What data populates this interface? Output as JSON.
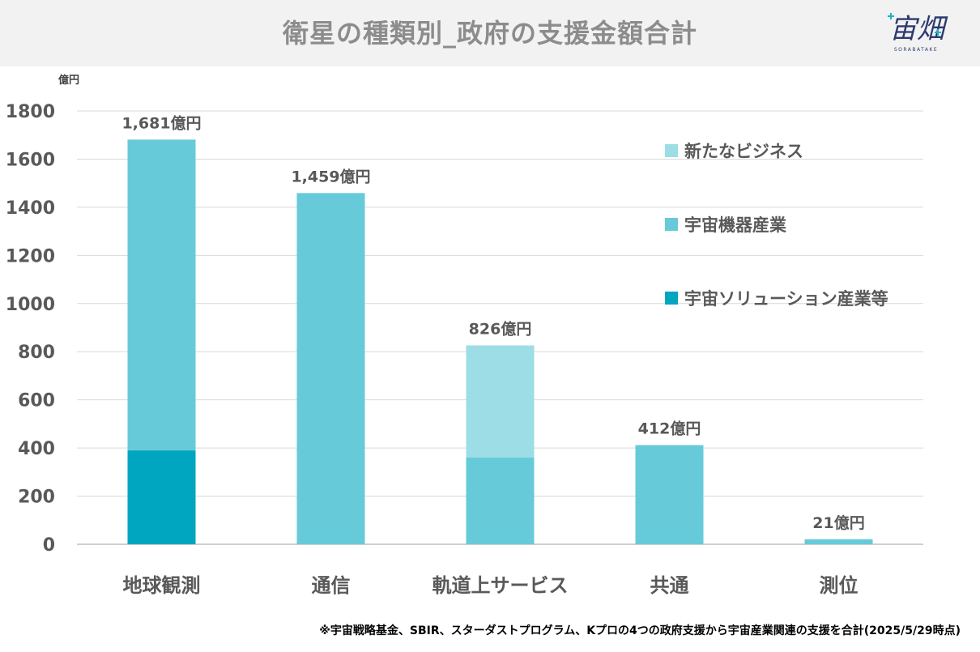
{
  "header": {
    "title": "衛星の種類別_政府の支援金額合計",
    "logo_text": "宙畑",
    "logo_subtext": "SORABATAKE"
  },
  "footnote": "※宇宙戦略基金、SBIR、スターダストプログラム、Kプロの4つの政府支援から宇宙産業関連の支援を合計(2025/5/29時点)",
  "chart_data": {
    "type": "bar",
    "stacked": true,
    "ylabel": "億円",
    "ylim": [
      0,
      1800
    ],
    "yticks": [
      0,
      200,
      400,
      600,
      800,
      1000,
      1200,
      1400,
      1600,
      1800
    ],
    "grid": true,
    "legend_position": "right",
    "categories": [
      "地球観測",
      "通信",
      "軌道上サービス",
      "共通",
      "測位"
    ],
    "series": [
      {
        "name": "宇宙ソリューション産業等",
        "color": "#00a6bf",
        "values": [
          390,
          0,
          0,
          0,
          0
        ]
      },
      {
        "name": "宇宙機器産業",
        "color": "#67cad9",
        "values": [
          1291,
          1459,
          360,
          412,
          21
        ]
      },
      {
        "name": "新たなビジネス",
        "color": "#9ddde6",
        "values": [
          0,
          0,
          466,
          0,
          0
        ]
      }
    ],
    "legend_order": [
      "新たなビジネス",
      "宇宙機器産業",
      "宇宙ソリューション産業等"
    ],
    "total_labels": [
      "1,681億円",
      "1,459億円",
      "826億円",
      "412億円",
      "21億円"
    ]
  }
}
